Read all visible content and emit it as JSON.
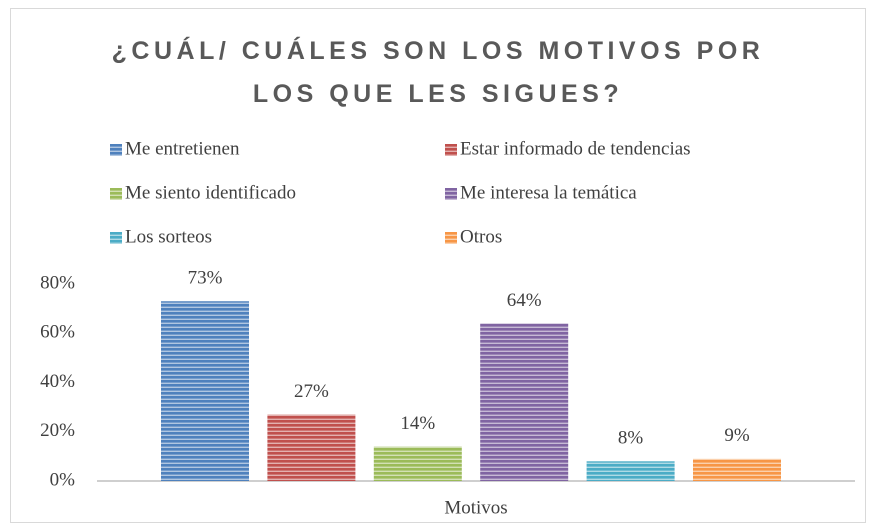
{
  "chart_data": {
    "type": "bar",
    "title": "¿CUÁL/ CUÁLES SON LOS MOTIVOS POR LOS QUE LES SIGUES?",
    "categories": [
      "Motivos"
    ],
    "series": [
      {
        "name": "Me entretienen",
        "color": "#4f81bd",
        "values": [
          73
        ],
        "value_labels": [
          "73%"
        ]
      },
      {
        "name": "Estar informado de tendencias",
        "color": "#c0504d",
        "values": [
          27
        ],
        "value_labels": [
          "27%"
        ]
      },
      {
        "name": "Me siento identificado",
        "color": "#9bbb59",
        "values": [
          14
        ],
        "value_labels": [
          "14%"
        ]
      },
      {
        "name": "Me interesa la temática",
        "color": "#8064a2",
        "values": [
          64
        ],
        "value_labels": [
          "64%"
        ]
      },
      {
        "name": "Los sorteos",
        "color": "#4bacc6",
        "values": [
          8
        ],
        "value_labels": [
          "8%"
        ]
      },
      {
        "name": "Otros",
        "color": "#f79646",
        "values": [
          9
        ],
        "value_labels": [
          "9%"
        ]
      }
    ],
    "ylim": [
      0,
      80
    ],
    "yticks": [
      {
        "value": 0,
        "label": "0%"
      },
      {
        "value": 20,
        "label": "20%"
      },
      {
        "value": 40,
        "label": "40%"
      },
      {
        "value": 60,
        "label": "60%"
      },
      {
        "value": 80,
        "label": "80%"
      }
    ],
    "grid": false,
    "legend": "top"
  }
}
